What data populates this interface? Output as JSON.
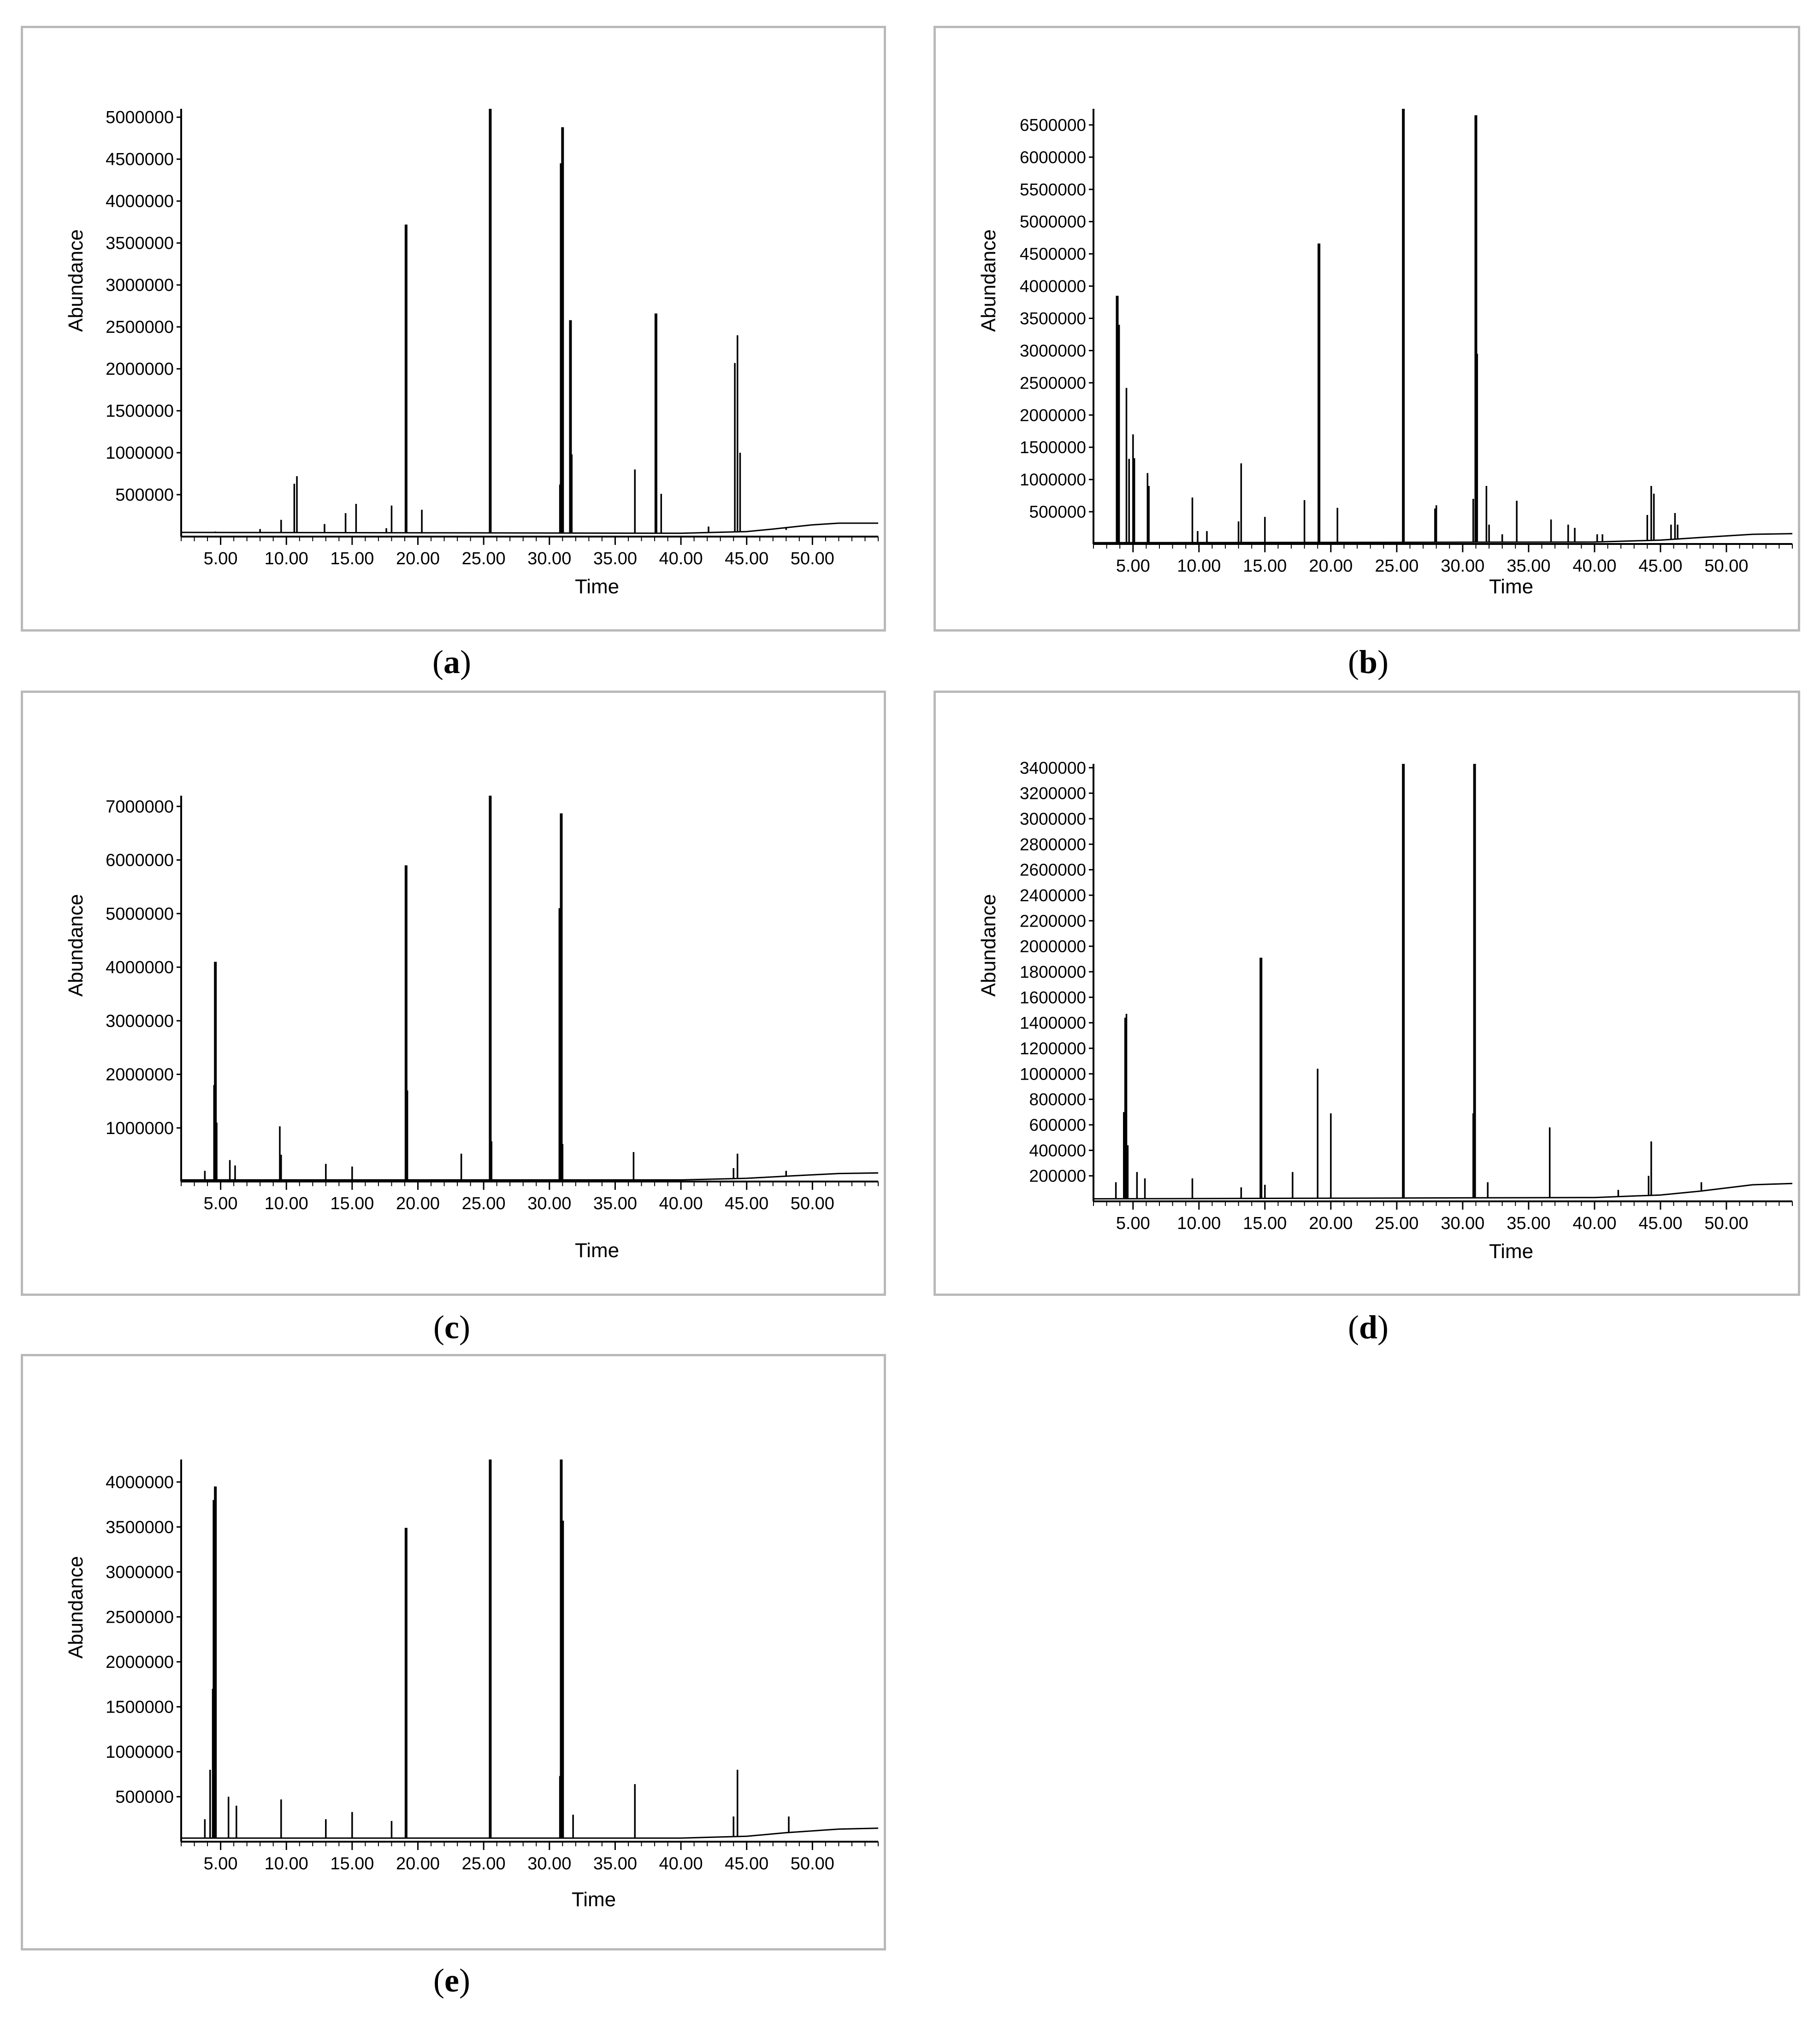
{
  "chart_data": [
    {
      "id": "a",
      "type": "line",
      "caption_letter": "a",
      "xlabel": "Time",
      "ylabel": "Abundance",
      "xlim": [
        2,
        55
      ],
      "ylim": [
        0,
        5100000
      ],
      "xticks": [
        5,
        10,
        15,
        20,
        25,
        30,
        35,
        40,
        45,
        50
      ],
      "xtick_labels": [
        "5.00",
        "10.00",
        "15.00",
        "20.00",
        "25.00",
        "30.00",
        "35.00",
        "40.00",
        "45.00",
        "50.00"
      ],
      "yticks": [
        500000,
        1000000,
        1500000,
        2000000,
        2500000,
        3000000,
        3500000,
        4000000,
        4500000,
        5000000
      ],
      "ytick_labels": [
        "500000",
        "1000000",
        "1500000",
        "2000000",
        "2500000",
        "3000000",
        "3500000",
        "4000000",
        "4500000",
        "5000000"
      ],
      "baseline": [
        [
          2,
          50000
        ],
        [
          40,
          40000
        ],
        [
          45,
          60000
        ],
        [
          47,
          90000
        ],
        [
          50,
          140000
        ],
        [
          52,
          160000
        ],
        [
          55,
          160000
        ]
      ],
      "peaks": [
        [
          4.6,
          60000
        ],
        [
          8.0,
          90000
        ],
        [
          9.6,
          200000
        ],
        [
          10.6,
          630000
        ],
        [
          10.8,
          720000
        ],
        [
          12.9,
          150000
        ],
        [
          14.5,
          280000
        ],
        [
          15.3,
          390000
        ],
        [
          17.6,
          100000
        ],
        [
          18.0,
          370000
        ],
        [
          19.1,
          3720000
        ],
        [
          20.3,
          320000
        ],
        [
          25.5,
          5100000
        ],
        [
          30.8,
          620000
        ],
        [
          30.9,
          4450000
        ],
        [
          31.0,
          4880000
        ],
        [
          31.6,
          2580000
        ],
        [
          31.7,
          980000
        ],
        [
          36.5,
          800000
        ],
        [
          38.1,
          2660000
        ],
        [
          38.5,
          510000
        ],
        [
          42.1,
          120000
        ],
        [
          44.1,
          2070000
        ],
        [
          44.3,
          2400000
        ],
        [
          44.5,
          1000000
        ],
        [
          48.0,
          80000
        ]
      ]
    },
    {
      "id": "b",
      "type": "line",
      "caption_letter": "b",
      "xlabel": "Time",
      "ylabel": "Abundance",
      "xlim": [
        2,
        55
      ],
      "ylim": [
        0,
        6750000
      ],
      "xticks": [
        5,
        10,
        15,
        20,
        25,
        30,
        35,
        40,
        45,
        50
      ],
      "xtick_labels": [
        "5.00",
        "10.00",
        "15.00",
        "20.00",
        "25.00",
        "30.00",
        "35.00",
        "40.00",
        "45.00",
        "50.00"
      ],
      "yticks": [
        500000,
        1000000,
        1500000,
        2000000,
        2500000,
        3000000,
        3500000,
        4000000,
        4500000,
        5000000,
        5500000,
        6000000,
        6500000
      ],
      "ytick_labels": [
        "500000",
        "1000000",
        "1500000",
        "2000000",
        "2500000",
        "3000000",
        "3500000",
        "4000000",
        "4500000",
        "5000000",
        "5500000",
        "6000000",
        "6500000"
      ],
      "baseline": [
        [
          2,
          20000
        ],
        [
          40,
          30000
        ],
        [
          45,
          60000
        ],
        [
          48,
          100000
        ],
        [
          52,
          150000
        ],
        [
          55,
          160000
        ]
      ],
      "peaks": [
        [
          3.8,
          3850000
        ],
        [
          3.9,
          3400000
        ],
        [
          4.5,
          2420000
        ],
        [
          4.7,
          1320000
        ],
        [
          5.0,
          1700000
        ],
        [
          5.1,
          1330000
        ],
        [
          6.1,
          1100000
        ],
        [
          6.2,
          900000
        ],
        [
          9.5,
          720000
        ],
        [
          9.9,
          200000
        ],
        [
          10.6,
          200000
        ],
        [
          13.0,
          350000
        ],
        [
          13.2,
          1250000
        ],
        [
          15.0,
          420000
        ],
        [
          18.0,
          680000
        ],
        [
          19.1,
          4660000
        ],
        [
          20.5,
          560000
        ],
        [
          25.5,
          6750000
        ],
        [
          27.9,
          550000
        ],
        [
          28.0,
          600000
        ],
        [
          30.8,
          700000
        ],
        [
          31.0,
          6650000
        ],
        [
          31.1,
          2950000
        ],
        [
          31.8,
          900000
        ],
        [
          32.0,
          300000
        ],
        [
          33.0,
          150000
        ],
        [
          34.1,
          670000
        ],
        [
          36.7,
          380000
        ],
        [
          38.0,
          300000
        ],
        [
          38.5,
          250000
        ],
        [
          40.2,
          150000
        ],
        [
          40.6,
          150000
        ],
        [
          44.0,
          450000
        ],
        [
          44.3,
          900000
        ],
        [
          44.5,
          780000
        ],
        [
          45.8,
          300000
        ],
        [
          46.1,
          480000
        ],
        [
          46.3,
          300000
        ]
      ]
    },
    {
      "id": "c",
      "type": "line",
      "caption_letter": "c",
      "xlabel": "Time",
      "ylabel": "Abundance",
      "xlim": [
        2,
        55
      ],
      "ylim": [
        0,
        7200000
      ],
      "xticks": [
        5,
        10,
        15,
        20,
        25,
        30,
        35,
        40,
        45,
        50
      ],
      "xtick_labels": [
        "5.00",
        "10.00",
        "15.00",
        "20.00",
        "25.00",
        "30.00",
        "35.00",
        "40.00",
        "45.00",
        "50.00"
      ],
      "yticks": [
        1000000,
        2000000,
        3000000,
        4000000,
        5000000,
        6000000,
        7000000
      ],
      "ytick_labels": [
        "1000000",
        "2000000",
        "3000000",
        "4000000",
        "5000000",
        "6000000",
        "7000000"
      ],
      "baseline": [
        [
          2,
          30000
        ],
        [
          40,
          30000
        ],
        [
          45,
          60000
        ],
        [
          48,
          100000
        ],
        [
          52,
          150000
        ],
        [
          55,
          160000
        ]
      ],
      "peaks": [
        [
          3.8,
          200000
        ],
        [
          4.5,
          1800000
        ],
        [
          4.6,
          4100000
        ],
        [
          4.7,
          1100000
        ],
        [
          5.7,
          400000
        ],
        [
          6.1,
          300000
        ],
        [
          9.5,
          1030000
        ],
        [
          9.6,
          500000
        ],
        [
          13.0,
          330000
        ],
        [
          15.0,
          280000
        ],
        [
          19.1,
          5900000
        ],
        [
          19.2,
          1700000
        ],
        [
          23.3,
          520000
        ],
        [
          25.5,
          7200000
        ],
        [
          25.6,
          750000
        ],
        [
          30.8,
          5100000
        ],
        [
          30.9,
          6870000
        ],
        [
          31.0,
          700000
        ],
        [
          36.4,
          550000
        ],
        [
          44.3,
          520000
        ],
        [
          44.0,
          250000
        ],
        [
          48.0,
          200000
        ]
      ]
    },
    {
      "id": "d",
      "type": "line",
      "caption_letter": "d",
      "xlabel": "Time",
      "ylabel": "Abundance",
      "xlim": [
        2,
        55
      ],
      "ylim": [
        0,
        3430000
      ],
      "xticks": [
        5,
        10,
        15,
        20,
        25,
        30,
        35,
        40,
        45,
        50
      ],
      "xtick_labels": [
        "5.00",
        "10.00",
        "15.00",
        "20.00",
        "25.00",
        "30.00",
        "35.00",
        "40.00",
        "45.00",
        "50.00"
      ],
      "yticks": [
        200000,
        400000,
        600000,
        800000,
        1000000,
        1200000,
        1400000,
        1600000,
        1800000,
        2000000,
        2200000,
        2400000,
        2600000,
        2800000,
        3000000,
        3200000,
        3400000
      ],
      "ytick_labels": [
        "200000",
        "400000",
        "600000",
        "800000",
        "1000000",
        "1200000",
        "1400000",
        "1600000",
        "1800000",
        "2000000",
        "2200000",
        "2400000",
        "2600000",
        "2800000",
        "3000000",
        "3200000",
        "3400000"
      ],
      "baseline": [
        [
          2,
          20000
        ],
        [
          40,
          30000
        ],
        [
          45,
          50000
        ],
        [
          48,
          80000
        ],
        [
          52,
          130000
        ],
        [
          55,
          140000
        ]
      ],
      "peaks": [
        [
          3.7,
          150000
        ],
        [
          4.3,
          700000
        ],
        [
          4.4,
          1440000
        ],
        [
          4.5,
          1470000
        ],
        [
          4.6,
          440000
        ],
        [
          5.3,
          230000
        ],
        [
          5.9,
          180000
        ],
        [
          9.5,
          180000
        ],
        [
          13.2,
          110000
        ],
        [
          14.7,
          1910000
        ],
        [
          15.0,
          130000
        ],
        [
          17.1,
          230000
        ],
        [
          19.0,
          1040000
        ],
        [
          20.0,
          690000
        ],
        [
          25.5,
          3430000
        ],
        [
          30.8,
          690000
        ],
        [
          30.9,
          3430000
        ],
        [
          31.9,
          150000
        ],
        [
          36.6,
          580000
        ],
        [
          41.8,
          90000
        ],
        [
          44.1,
          200000
        ],
        [
          44.3,
          470000
        ],
        [
          48.1,
          150000
        ]
      ]
    },
    {
      "id": "e",
      "type": "line",
      "caption_letter": "e",
      "xlabel": "Time",
      "ylabel": "Abundance",
      "xlim": [
        2,
        55
      ],
      "ylim": [
        0,
        4250000
      ],
      "xticks": [
        5,
        10,
        15,
        20,
        25,
        30,
        35,
        40,
        45,
        50
      ],
      "xtick_labels": [
        "5.00",
        "10.00",
        "15.00",
        "20.00",
        "25.00",
        "30.00",
        "35.00",
        "40.00",
        "45.00",
        "50.00"
      ],
      "yticks": [
        500000,
        1000000,
        1500000,
        2000000,
        2500000,
        3000000,
        3500000,
        4000000
      ],
      "ytick_labels": [
        "500000",
        "1000000",
        "1500000",
        "2000000",
        "2500000",
        "3000000",
        "3500000",
        "4000000"
      ],
      "baseline": [
        [
          2,
          40000
        ],
        [
          40,
          40000
        ],
        [
          45,
          60000
        ],
        [
          48,
          100000
        ],
        [
          52,
          140000
        ],
        [
          55,
          150000
        ]
      ],
      "peaks": [
        [
          3.8,
          250000
        ],
        [
          4.2,
          800000
        ],
        [
          4.4,
          1700000
        ],
        [
          4.5,
          3800000
        ],
        [
          4.6,
          3950000
        ],
        [
          5.6,
          500000
        ],
        [
          6.2,
          400000
        ],
        [
          9.6,
          470000
        ],
        [
          13.0,
          250000
        ],
        [
          15.0,
          330000
        ],
        [
          18.0,
          230000
        ],
        [
          19.1,
          3490000
        ],
        [
          25.5,
          4250000
        ],
        [
          30.8,
          730000
        ],
        [
          30.9,
          4250000
        ],
        [
          31.0,
          3570000
        ],
        [
          31.8,
          300000
        ],
        [
          36.5,
          640000
        ],
        [
          44.0,
          280000
        ],
        [
          44.3,
          800000
        ],
        [
          48.2,
          280000
        ]
      ]
    }
  ]
}
